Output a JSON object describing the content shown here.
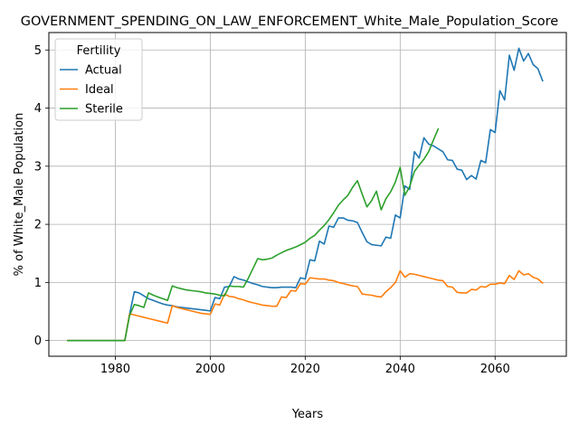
{
  "chart_data": {
    "type": "line",
    "title": "GOVERNMENT_SPENDING_ON_LAW_ENFORCEMENT_White_Male_Population_Score",
    "xlabel": "Years",
    "ylabel": "% of White_Male Population",
    "xlim": [
      1966,
      2075
    ],
    "ylim": [
      -0.27,
      5.3
    ],
    "xticks": [
      1980,
      2000,
      2020,
      2040,
      2060
    ],
    "yticks": [
      0,
      1,
      2,
      3,
      4,
      5
    ],
    "grid": true,
    "legend": {
      "title": "Fertility",
      "position": "top-left"
    },
    "series": [
      {
        "name": "Actual",
        "color": "#1f77b4",
        "x": [
          1970,
          1971,
          1972,
          1973,
          1974,
          1975,
          1976,
          1977,
          1978,
          1979,
          1980,
          1981,
          1982,
          1983,
          1984,
          1985,
          1986,
          1987,
          1988,
          1989,
          1990,
          1991,
          1992,
          1993,
          1994,
          1995,
          1996,
          1997,
          1998,
          1999,
          2000,
          2001,
          2002,
          2003,
          2004,
          2005,
          2006,
          2007,
          2008,
          2009,
          2010,
          2011,
          2012,
          2013,
          2014,
          2015,
          2016,
          2017,
          2018,
          2019,
          2020,
          2021,
          2022,
          2023,
          2024,
          2025,
          2026,
          2027,
          2028,
          2029,
          2030,
          2031,
          2032,
          2033,
          2034,
          2035,
          2036,
          2037,
          2038,
          2039,
          2040,
          2041,
          2042,
          2043,
          2044,
          2045,
          2046,
          2047,
          2048,
          2049,
          2050,
          2051,
          2052,
          2053,
          2054,
          2055,
          2056,
          2057,
          2058,
          2059,
          2060,
          2061,
          2062,
          2063,
          2064,
          2065,
          2066,
          2067,
          2068,
          2069,
          2070
        ],
        "values": [
          0,
          0,
          0,
          0,
          0,
          0,
          0,
          0,
          0,
          0,
          0,
          0,
          0,
          0.45,
          0.84,
          0.82,
          0.77,
          0.72,
          0.69,
          0.66,
          0.63,
          0.61,
          0.6,
          0.58,
          0.57,
          0.56,
          0.55,
          0.54,
          0.53,
          0.52,
          0.51,
          0.74,
          0.72,
          0.92,
          0.93,
          1.1,
          1.06,
          1.04,
          1.01,
          0.98,
          0.96,
          0.93,
          0.92,
          0.91,
          0.91,
          0.92,
          0.92,
          0.92,
          0.91,
          1.08,
          1.06,
          1.39,
          1.37,
          1.71,
          1.66,
          1.97,
          1.95,
          2.11,
          2.11,
          2.07,
          2.06,
          2.03,
          1.86,
          1.7,
          1.65,
          1.64,
          1.63,
          1.78,
          1.76,
          2.16,
          2.11,
          2.66,
          2.6,
          3.25,
          3.14,
          3.49,
          3.38,
          3.35,
          3.3,
          3.25,
          3.11,
          3.1,
          2.95,
          2.93,
          2.77,
          2.84,
          2.78,
          3.1,
          3.06,
          3.63,
          3.58,
          4.3,
          4.14,
          4.91,
          4.65,
          5.03,
          4.81,
          4.94,
          4.75,
          4.68,
          4.47
        ]
      },
      {
        "name": "Ideal",
        "color": "#ff7f0e",
        "x": [
          1970,
          1971,
          1972,
          1973,
          1974,
          1975,
          1976,
          1977,
          1978,
          1979,
          1980,
          1981,
          1982,
          1983,
          1984,
          1985,
          1986,
          1987,
          1988,
          1989,
          1990,
          1991,
          1992,
          1993,
          1994,
          1995,
          1996,
          1997,
          1998,
          1999,
          2000,
          2001,
          2002,
          2003,
          2004,
          2005,
          2006,
          2007,
          2008,
          2009,
          2010,
          2011,
          2012,
          2013,
          2014,
          2015,
          2016,
          2017,
          2018,
          2019,
          2020,
          2021,
          2022,
          2023,
          2024,
          2025,
          2026,
          2027,
          2028,
          2029,
          2030,
          2031,
          2032,
          2033,
          2034,
          2035,
          2036,
          2037,
          2038,
          2039,
          2040,
          2041,
          2042,
          2043,
          2044,
          2045,
          2046,
          2047,
          2048,
          2049,
          2050,
          2051,
          2052,
          2053,
          2054,
          2055,
          2056,
          2057,
          2058,
          2059,
          2060,
          2061,
          2062,
          2063,
          2064,
          2065,
          2066,
          2067,
          2068,
          2069,
          2070
        ],
        "values": [
          0,
          0,
          0,
          0,
          0,
          0,
          0,
          0,
          0,
          0,
          0,
          0,
          0,
          0.46,
          0.44,
          0.42,
          0.4,
          0.38,
          0.36,
          0.34,
          0.32,
          0.3,
          0.6,
          0.57,
          0.55,
          0.53,
          0.51,
          0.49,
          0.47,
          0.46,
          0.45,
          0.63,
          0.61,
          0.8,
          0.76,
          0.75,
          0.72,
          0.7,
          0.67,
          0.65,
          0.63,
          0.61,
          0.6,
          0.59,
          0.59,
          0.75,
          0.74,
          0.86,
          0.85,
          0.98,
          0.97,
          1.08,
          1.07,
          1.06,
          1.06,
          1.04,
          1.03,
          1.0,
          0.98,
          0.96,
          0.94,
          0.93,
          0.8,
          0.79,
          0.78,
          0.76,
          0.75,
          0.84,
          0.91,
          1.0,
          1.2,
          1.09,
          1.15,
          1.14,
          1.12,
          1.1,
          1.08,
          1.06,
          1.04,
          1.03,
          0.93,
          0.92,
          0.83,
          0.82,
          0.82,
          0.88,
          0.87,
          0.93,
          0.92,
          0.97,
          0.97,
          0.99,
          0.98,
          1.12,
          1.05,
          1.2,
          1.13,
          1.15,
          1.09,
          1.06,
          0.99
        ]
      },
      {
        "name": "Sterile",
        "color": "#2ca02c",
        "x": [
          1970,
          1971,
          1972,
          1973,
          1974,
          1975,
          1976,
          1977,
          1978,
          1979,
          1980,
          1981,
          1982,
          1983,
          1984,
          1985,
          1986,
          1987,
          1988,
          1989,
          1990,
          1991,
          1992,
          1993,
          1994,
          1995,
          1996,
          1997,
          1998,
          1999,
          2000,
          2001,
          2002,
          2003,
          2004,
          2005,
          2006,
          2007,
          2008,
          2009,
          2010,
          2011,
          2012,
          2013,
          2014,
          2015,
          2016,
          2017,
          2018,
          2019,
          2020,
          2021,
          2022,
          2023,
          2024,
          2025,
          2026,
          2027,
          2028,
          2029,
          2030,
          2031,
          2032,
          2033,
          2034,
          2035,
          2036,
          2037,
          2038,
          2039,
          2040,
          2041,
          2042,
          2043,
          2044,
          2045,
          2046,
          2047,
          2048
        ],
        "values": [
          0,
          0,
          0,
          0,
          0,
          0,
          0,
          0,
          0,
          0,
          0,
          0,
          0,
          0.43,
          0.62,
          0.6,
          0.57,
          0.82,
          0.78,
          0.75,
          0.72,
          0.69,
          0.94,
          0.91,
          0.89,
          0.87,
          0.86,
          0.85,
          0.84,
          0.82,
          0.81,
          0.8,
          0.78,
          0.77,
          0.94,
          0.93,
          0.93,
          0.92,
          1.07,
          1.24,
          1.41,
          1.39,
          1.4,
          1.42,
          1.47,
          1.51,
          1.55,
          1.58,
          1.61,
          1.65,
          1.69,
          1.76,
          1.81,
          1.9,
          1.98,
          2.08,
          2.2,
          2.33,
          2.42,
          2.5,
          2.64,
          2.75,
          2.52,
          2.3,
          2.41,
          2.57,
          2.25,
          2.44,
          2.56,
          2.73,
          2.98,
          2.5,
          2.65,
          2.91,
          3.02,
          3.12,
          3.25,
          3.45,
          3.64
        ]
      }
    ]
  }
}
